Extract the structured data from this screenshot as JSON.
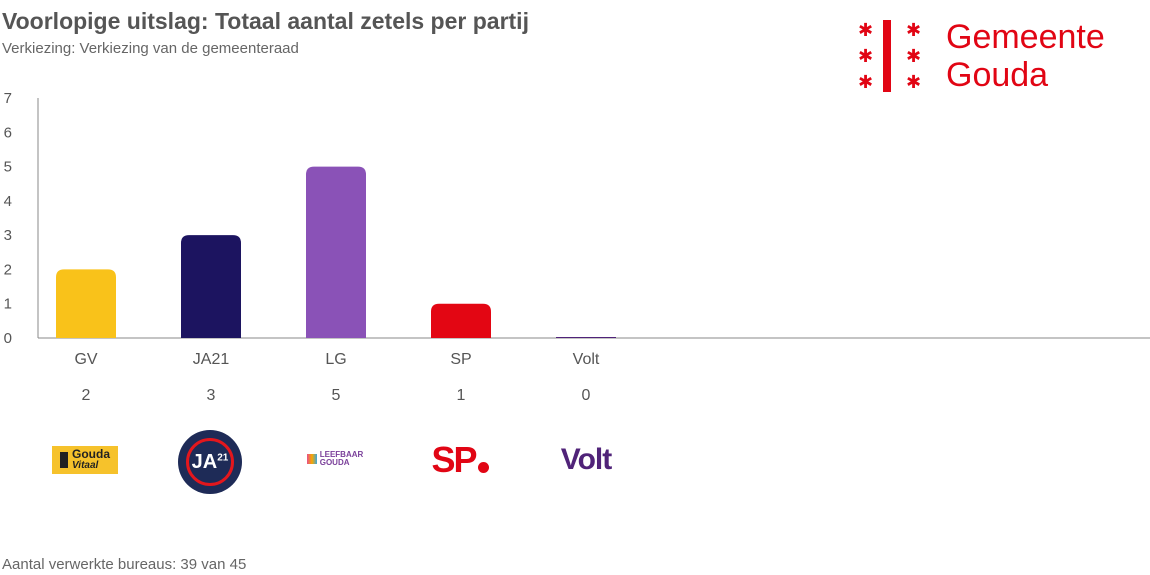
{
  "header": {
    "title": "Voorlopige uitslag: Totaal aantal zetels per partij",
    "subtitle": "Verkiezing: Verkiezing van de gemeenteraad"
  },
  "logo": {
    "line1": "Gemeente",
    "line2": "Gouda",
    "color": "#e10514"
  },
  "footer": {
    "text": "Aantal verwerkte bureaus: 39 van 45"
  },
  "parties": [
    {
      "code": "GV",
      "logo_text": "Gouda",
      "logo_sub": "Vitaal"
    },
    {
      "code": "JA21",
      "logo_text": "JA",
      "logo_sup": "21"
    },
    {
      "code": "LG",
      "logo_line1": "LEEFBAAR",
      "logo_line2": "GOUDA"
    },
    {
      "code": "SP",
      "logo_text": "SP"
    },
    {
      "code": "Volt",
      "logo_text": "Volt"
    }
  ],
  "chart_data": {
    "type": "bar",
    "title": "Voorlopige uitslag: Totaal aantal zetels per partij",
    "xlabel": "",
    "ylabel": "",
    "categories": [
      "GV",
      "JA21",
      "LG",
      "SP",
      "Volt"
    ],
    "values": [
      2,
      3,
      5,
      1,
      0
    ],
    "value_labels": [
      "2",
      "3",
      "5",
      "1",
      "0"
    ],
    "colors": [
      "#f9c21a",
      "#1c1460",
      "#8a52b7",
      "#e30613",
      "#502379"
    ],
    "ylim": [
      0,
      7
    ],
    "yticks": [
      "0",
      "1",
      "2",
      "3",
      "4",
      "5",
      "6",
      "7"
    ],
    "grid": false
  }
}
